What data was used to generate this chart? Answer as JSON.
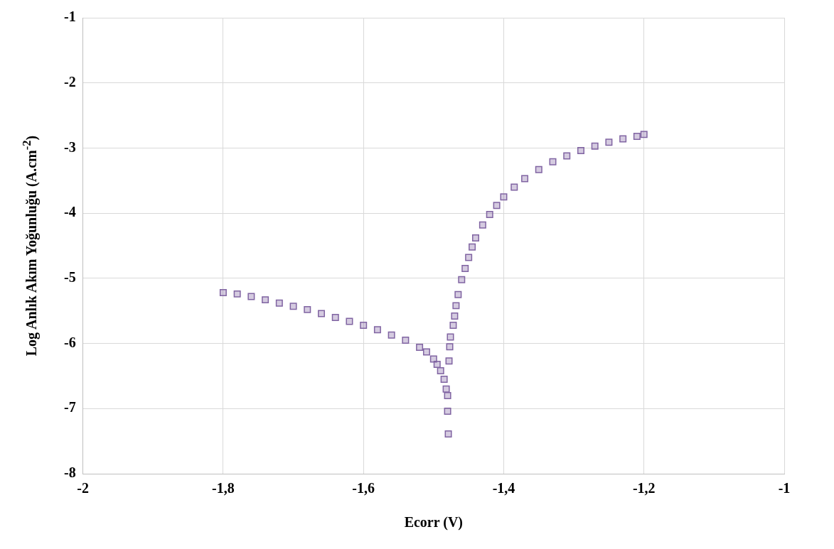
{
  "chart_data": {
    "type": "scatter",
    "xlabel": "Ecorr (V)",
    "ylabel": "Log Anlık Akım Yoğunluğu (A.cm$^{-2}$)",
    "xlim": [
      -2,
      -1
    ],
    "xticks": [
      -2,
      {
        "value": -1.8,
        "label": "-1,8"
      },
      {
        "value": -1.6,
        "label": "-1,6"
      },
      {
        "value": -1.4,
        "label": "-1,4"
      },
      {
        "value": -1.2,
        "label": "-1,2"
      },
      -1
    ],
    "ylim": [
      -8,
      -1
    ],
    "yticks": [
      -8,
      -7,
      -6,
      -5,
      -4,
      -3,
      -2,
      -1
    ],
    "grid": true,
    "marker": "square",
    "series": [
      {
        "color": "#8064a2",
        "x": [
          -1.8,
          -1.78,
          -1.76,
          -1.74,
          -1.72,
          -1.7,
          -1.68,
          -1.66,
          -1.64,
          -1.62,
          -1.6,
          -1.58,
          -1.56,
          -1.54,
          -1.52,
          -1.51,
          -1.5,
          -1.495,
          -1.49,
          -1.485,
          -1.482,
          -1.48,
          -1.48,
          -1.479,
          -1.478,
          -1.477,
          -1.476,
          -1.472,
          -1.47,
          -1.468,
          -1.465,
          -1.46,
          -1.455,
          -1.45,
          -1.445,
          -1.44,
          -1.43,
          -1.42,
          -1.41,
          -1.4,
          -1.385,
          -1.37,
          -1.35,
          -1.33,
          -1.31,
          -1.29,
          -1.27,
          -1.25,
          -1.23,
          -1.21,
          -1.2
        ],
        "values": [
          -5.22,
          -5.24,
          -5.28,
          -5.33,
          -5.38,
          -5.43,
          -5.48,
          -5.54,
          -5.6,
          -5.66,
          -5.72,
          -5.79,
          -5.87,
          -5.95,
          -6.06,
          -6.13,
          -6.24,
          -6.32,
          -6.42,
          -6.55,
          -6.7,
          -6.8,
          -7.04,
          -7.39,
          -6.27,
          -6.05,
          -5.9,
          -5.72,
          -5.58,
          -5.42,
          -5.25,
          -5.02,
          -4.85,
          -4.68,
          -4.52,
          -4.38,
          -4.18,
          -4.02,
          -3.88,
          -3.75,
          -3.6,
          -3.47,
          -3.33,
          -3.21,
          -3.12,
          -3.04,
          -2.97,
          -2.91,
          -2.86,
          -2.82,
          -2.79
        ]
      }
    ]
  }
}
